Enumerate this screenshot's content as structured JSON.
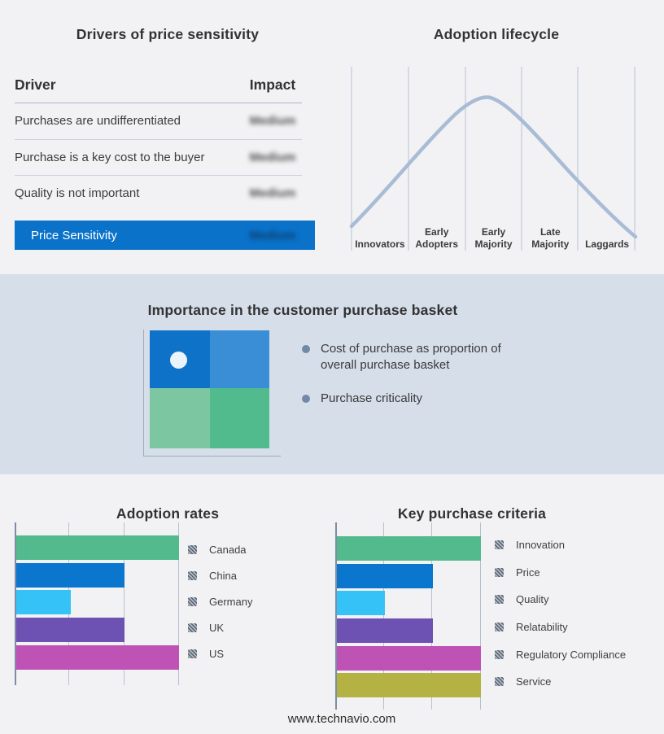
{
  "drivers_table": {
    "title": "Drivers of price sensitivity",
    "col_driver": "Driver",
    "col_impact": "Impact",
    "rows": [
      {
        "driver": "Purchases are undifferentiated",
        "impact": "Medium"
      },
      {
        "driver": "Purchase is a key cost to the buyer",
        "impact": "Medium"
      },
      {
        "driver": "Quality is not important",
        "impact": "Medium"
      }
    ],
    "highlight_row": {
      "label": "Price Sensitivity",
      "impact": "Medium"
    },
    "impact_values_blurred": true,
    "highlight_color": "#0a72c9"
  },
  "basket": {
    "title": "Importance in the customer purchase basket",
    "bullets": [
      "Cost of purchase as proportion of overall purchase basket",
      "Purchase criticality"
    ],
    "quadrant_colors": {
      "top_left": "#0d72c8",
      "top_right": "#3a8ed6",
      "bottom_left": "#7cc7a1",
      "bottom_right": "#52bb8d"
    },
    "band_background": "#d5dee9"
  },
  "footer": {
    "website": "www.technavio.com"
  },
  "chart_data": [
    {
      "id": "lifecycle",
      "type": "line",
      "title": "Adoption lifecycle",
      "categories": [
        "Innovators",
        "Early Adopters",
        "Early Majority",
        "Late Majority",
        "Laggards"
      ],
      "curve": "bell",
      "peak_stage": "Early Majority",
      "curve_color": "#a9bcd6",
      "grid": true,
      "legend_position": "none"
    },
    {
      "id": "adoption",
      "type": "bar",
      "title": "Adoption rates",
      "orientation": "horizontal",
      "categories": [
        "Canada",
        "China",
        "Germany",
        "UK",
        "US"
      ],
      "values": [
        3,
        2,
        1,
        2,
        3
      ],
      "xlim": [
        0,
        3
      ],
      "colors": [
        "#52ba8c",
        "#0b76ce",
        "#35c3f7",
        "#6d52b3",
        "#bf53b5"
      ],
      "grid": true,
      "legend_position": "right"
    },
    {
      "id": "criteria",
      "type": "bar",
      "title": "Key purchase criteria",
      "orientation": "horizontal",
      "categories": [
        "Innovation",
        "Price",
        "Quality",
        "Relatability",
        "Regulatory Compliance",
        "Service"
      ],
      "values": [
        3,
        2,
        1,
        2,
        3,
        3
      ],
      "xlim": [
        0,
        3
      ],
      "colors": [
        "#52ba8c",
        "#0b76ce",
        "#35c3f7",
        "#6d52b3",
        "#bf53b5",
        "#b5b244"
      ],
      "grid": true,
      "legend_position": "right"
    }
  ]
}
